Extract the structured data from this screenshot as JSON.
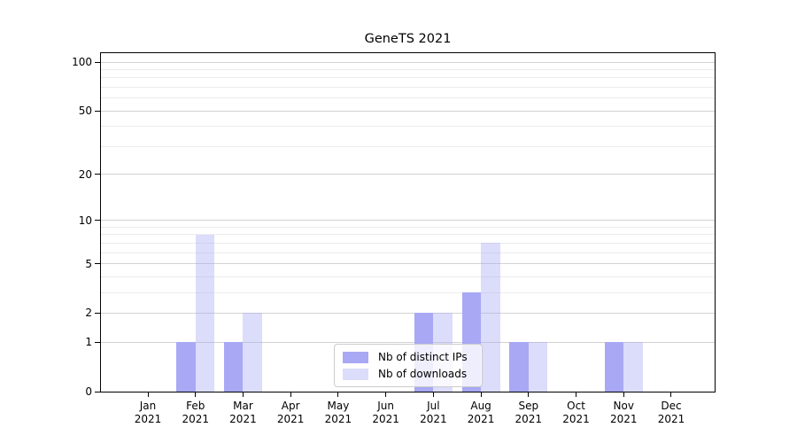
{
  "chart_data": {
    "type": "bar",
    "title": "GeneTS 2021",
    "year": "2021",
    "months": [
      "Jan",
      "Feb",
      "Mar",
      "Apr",
      "May",
      "Jun",
      "Jul",
      "Aug",
      "Sep",
      "Oct",
      "Nov",
      "Dec"
    ],
    "categories": [
      "Jan 2021",
      "Feb 2021",
      "Mar 2021",
      "Apr 2021",
      "May 2021",
      "Jun 2021",
      "Jul 2021",
      "Aug 2021",
      "Sep 2021",
      "Oct 2021",
      "Nov 2021",
      "Dec 2021"
    ],
    "series": [
      {
        "name": "Nb of distinct IPs",
        "color": "#a8a8f5",
        "alpha": 1.0,
        "values": [
          0,
          1,
          1,
          0,
          0,
          0,
          2,
          3,
          1,
          0,
          1,
          0
        ]
      },
      {
        "name": "Nb of downloads",
        "color": "#a8a8f5",
        "alpha": 0.4,
        "values": [
          0,
          8,
          2,
          0,
          0,
          0,
          2,
          7,
          1,
          0,
          1,
          0
        ]
      }
    ],
    "y_scale": "log1p",
    "y_major_ticks": [
      0,
      1,
      2,
      5,
      10,
      20,
      50,
      100
    ],
    "y_minor_gridlines": [
      3,
      4,
      6,
      7,
      8,
      9,
      30,
      40,
      60,
      70,
      80,
      90
    ],
    "ylim": [
      0,
      113
    ],
    "xlabel": "",
    "ylabel": "",
    "grid": "horizontal, major and minor",
    "legend_position": "lower center"
  }
}
